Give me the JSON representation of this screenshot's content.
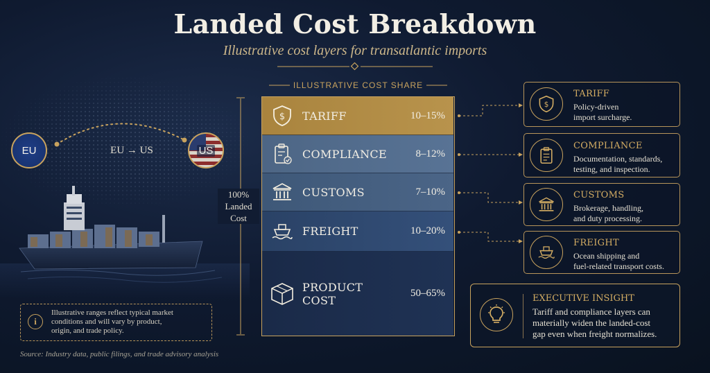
{
  "header": {
    "title": "Landed Cost Breakdown",
    "subtitle": "Illustrative cost layers for transatlantic imports"
  },
  "route": {
    "origin": "EU",
    "destination": "US",
    "label": "EU → US"
  },
  "stack": {
    "title": "ILLUSTRATIVE COST SHARE",
    "total_label_line1": "100%",
    "total_label_line2": "Landed",
    "total_label_line3": "Cost",
    "rows": [
      {
        "label": "TARIFF",
        "value": "10–15%",
        "icon": "shield-dollar-icon"
      },
      {
        "label": "COMPLIANCE",
        "value": "8–12%",
        "icon": "clipboard-check-icon"
      },
      {
        "label": "CUSTOMS",
        "value": "7–10%",
        "icon": "customs-building-icon"
      },
      {
        "label": "FREIGHT",
        "value": "10–20%",
        "icon": "ship-icon"
      },
      {
        "label": "PRODUCT COST",
        "value": "50–65%",
        "icon": "box-icon"
      }
    ]
  },
  "cards": [
    {
      "title": "TARIFF",
      "desc_line1": "Policy-driven",
      "desc_line2": "import surcharge.",
      "desc_line3": ""
    },
    {
      "title": "COMPLIANCE",
      "desc_line1": "Documentation, standards,",
      "desc_line2": "testing, and inspection.",
      "desc_line3": ""
    },
    {
      "title": "CUSTOMS",
      "desc_line1": "Brokerage, handling,",
      "desc_line2": "and duty processing.",
      "desc_line3": ""
    },
    {
      "title": "FREIGHT",
      "desc_line1": "Ocean shipping and",
      "desc_line2": "fuel-related transport costs.",
      "desc_line3": ""
    }
  ],
  "insight": {
    "title": "EXECUTIVE INSIGHT",
    "line1": "Tariff and compliance layers can",
    "line2": "materially widen the landed-cost",
    "line3": "gap even when freight normalizes."
  },
  "note": {
    "line1": "Illustrative ranges reflect typical market",
    "line2": "conditions and will vary by product,",
    "line3": "origin, and trade policy."
  },
  "source": "Source: Industry data, public filings, and trade advisory analysis",
  "colors": {
    "background": "#0f1a30",
    "gold": "#c9a35e",
    "tariff": "#b08a45",
    "compliance": "#587395",
    "customs": "#4b6587",
    "freight": "#34507a",
    "product": "#1f3254"
  }
}
